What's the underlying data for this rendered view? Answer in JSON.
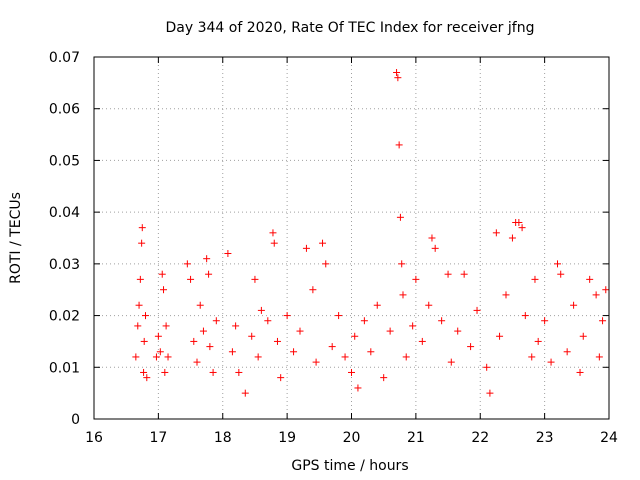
{
  "chart_data": {
    "type": "scatter",
    "title": "Day 344 of 2020, Rate Of TEC Index for receiver jfng",
    "xlabel": "GPS time / hours",
    "ylabel": "ROTI / TECUs",
    "xlim": [
      16,
      24
    ],
    "ylim": [
      0,
      0.07
    ],
    "xticks": [
      "16",
      "17",
      "18",
      "19",
      "20",
      "21",
      "22",
      "23",
      "24"
    ],
    "yticks": [
      "0",
      "0.01",
      "0.02",
      "0.03",
      "0.04",
      "0.05",
      "0.06",
      "0.07"
    ],
    "grid": true,
    "marker": "+",
    "color": "#ff0000",
    "series": [
      {
        "name": "ROTI",
        "points": [
          [
            16.65,
            0.012
          ],
          [
            16.68,
            0.018
          ],
          [
            16.7,
            0.022
          ],
          [
            16.72,
            0.027
          ],
          [
            16.74,
            0.034
          ],
          [
            16.75,
            0.037
          ],
          [
            16.77,
            0.009
          ],
          [
            16.78,
            0.015
          ],
          [
            16.8,
            0.02
          ],
          [
            16.82,
            0.008
          ],
          [
            16.97,
            0.012
          ],
          [
            17.0,
            0.016
          ],
          [
            17.03,
            0.013
          ],
          [
            17.06,
            0.028
          ],
          [
            17.08,
            0.025
          ],
          [
            17.1,
            0.009
          ],
          [
            17.12,
            0.018
          ],
          [
            17.15,
            0.012
          ],
          [
            17.45,
            0.03
          ],
          [
            17.5,
            0.027
          ],
          [
            17.55,
            0.015
          ],
          [
            17.6,
            0.011
          ],
          [
            17.65,
            0.022
          ],
          [
            17.7,
            0.017
          ],
          [
            17.75,
            0.031
          ],
          [
            17.78,
            0.028
          ],
          [
            17.8,
            0.014
          ],
          [
            17.85,
            0.009
          ],
          [
            17.9,
            0.019
          ],
          [
            18.08,
            0.032
          ],
          [
            18.15,
            0.013
          ],
          [
            18.2,
            0.018
          ],
          [
            18.25,
            0.009
          ],
          [
            18.35,
            0.005
          ],
          [
            18.45,
            0.016
          ],
          [
            18.5,
            0.027
          ],
          [
            18.55,
            0.012
          ],
          [
            18.6,
            0.021
          ],
          [
            18.7,
            0.019
          ],
          [
            18.78,
            0.036
          ],
          [
            18.8,
            0.034
          ],
          [
            18.85,
            0.015
          ],
          [
            18.9,
            0.008
          ],
          [
            19.0,
            0.02
          ],
          [
            19.1,
            0.013
          ],
          [
            19.2,
            0.017
          ],
          [
            19.3,
            0.033
          ],
          [
            19.4,
            0.025
          ],
          [
            19.45,
            0.011
          ],
          [
            19.55,
            0.034
          ],
          [
            19.6,
            0.03
          ],
          [
            19.7,
            0.014
          ],
          [
            19.8,
            0.02
          ],
          [
            19.9,
            0.012
          ],
          [
            20.0,
            0.009
          ],
          [
            20.05,
            0.016
          ],
          [
            20.1,
            0.006
          ],
          [
            20.2,
            0.019
          ],
          [
            20.3,
            0.013
          ],
          [
            20.4,
            0.022
          ],
          [
            20.5,
            0.008
          ],
          [
            20.6,
            0.017
          ],
          [
            20.7,
            0.067
          ],
          [
            20.72,
            0.066
          ],
          [
            20.74,
            0.053
          ],
          [
            20.76,
            0.039
          ],
          [
            20.78,
            0.03
          ],
          [
            20.8,
            0.024
          ],
          [
            20.85,
            0.012
          ],
          [
            20.95,
            0.018
          ],
          [
            21.0,
            0.027
          ],
          [
            21.1,
            0.015
          ],
          [
            21.2,
            0.022
          ],
          [
            21.25,
            0.035
          ],
          [
            21.3,
            0.033
          ],
          [
            21.4,
            0.019
          ],
          [
            21.5,
            0.028
          ],
          [
            21.55,
            0.011
          ],
          [
            21.65,
            0.017
          ],
          [
            21.75,
            0.028
          ],
          [
            21.85,
            0.014
          ],
          [
            21.95,
            0.021
          ],
          [
            22.1,
            0.01
          ],
          [
            22.15,
            0.005
          ],
          [
            22.25,
            0.036
          ],
          [
            22.3,
            0.016
          ],
          [
            22.4,
            0.024
          ],
          [
            22.5,
            0.035
          ],
          [
            22.55,
            0.038
          ],
          [
            22.6,
            0.038
          ],
          [
            22.65,
            0.037
          ],
          [
            22.7,
            0.02
          ],
          [
            22.8,
            0.012
          ],
          [
            22.85,
            0.027
          ],
          [
            22.9,
            0.015
          ],
          [
            23.0,
            0.019
          ],
          [
            23.1,
            0.011
          ],
          [
            23.2,
            0.03
          ],
          [
            23.25,
            0.028
          ],
          [
            23.35,
            0.013
          ],
          [
            23.45,
            0.022
          ],
          [
            23.55,
            0.009
          ],
          [
            23.6,
            0.016
          ],
          [
            23.7,
            0.027
          ],
          [
            23.8,
            0.024
          ],
          [
            23.85,
            0.012
          ],
          [
            23.9,
            0.019
          ],
          [
            23.95,
            0.025
          ]
        ]
      }
    ]
  }
}
